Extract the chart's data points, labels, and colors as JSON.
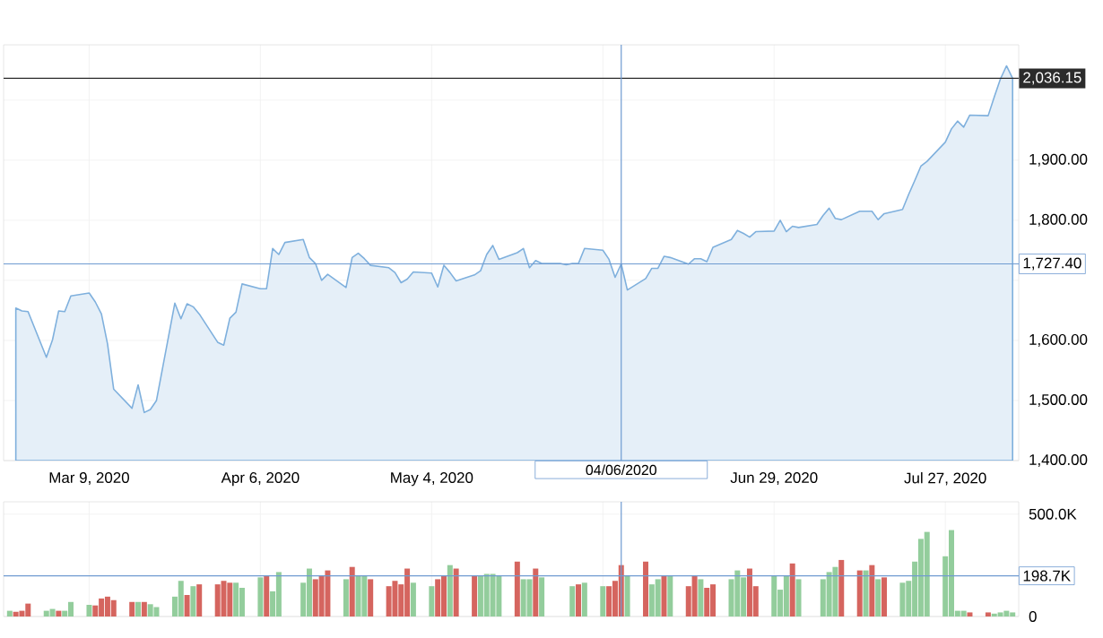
{
  "chart_data": [
    {
      "type": "area",
      "color": "#7fb0dd",
      "x": [
        "2020-02-26",
        "2020-02-27",
        "2020-02-28",
        "2020-03-02",
        "2020-03-03",
        "2020-03-04",
        "2020-03-05",
        "2020-03-06",
        "2020-03-09",
        "2020-03-10",
        "2020-03-11",
        "2020-03-12",
        "2020-03-13",
        "2020-03-16",
        "2020-03-17",
        "2020-03-18",
        "2020-03-19",
        "2020-03-20",
        "2020-03-23",
        "2020-03-24",
        "2020-03-25",
        "2020-03-26",
        "2020-03-27",
        "2020-03-30",
        "2020-03-31",
        "2020-04-01",
        "2020-04-02",
        "2020-04-03",
        "2020-04-06",
        "2020-04-07",
        "2020-04-08",
        "2020-04-09",
        "2020-04-10",
        "2020-04-13",
        "2020-04-14",
        "2020-04-15",
        "2020-04-16",
        "2020-04-17",
        "2020-04-20",
        "2020-04-21",
        "2020-04-22",
        "2020-04-23",
        "2020-04-24",
        "2020-04-27",
        "2020-04-28",
        "2020-04-29",
        "2020-04-30",
        "2020-05-01",
        "2020-05-04",
        "2020-05-05",
        "2020-05-06",
        "2020-05-07",
        "2020-05-08",
        "2020-05-11",
        "2020-05-12",
        "2020-05-13",
        "2020-05-14",
        "2020-05-15",
        "2020-05-18",
        "2020-05-19",
        "2020-05-20",
        "2020-05-21",
        "2020-05-22",
        "2020-05-25",
        "2020-05-26",
        "2020-05-27",
        "2020-05-28",
        "2020-05-29",
        "2020-06-01",
        "2020-06-02",
        "2020-06-03",
        "2020-06-04",
        "2020-06-05",
        "2020-06-08",
        "2020-06-09",
        "2020-06-10",
        "2020-06-11",
        "2020-06-12",
        "2020-06-15",
        "2020-06-16",
        "2020-06-17",
        "2020-06-18",
        "2020-06-19",
        "2020-06-22",
        "2020-06-23",
        "2020-06-24",
        "2020-06-25",
        "2020-06-26",
        "2020-06-29",
        "2020-06-30",
        "2020-07-01",
        "2020-07-02",
        "2020-07-03",
        "2020-07-06",
        "2020-07-07",
        "2020-07-08",
        "2020-07-09",
        "2020-07-10",
        "2020-07-13",
        "2020-07-14",
        "2020-07-15",
        "2020-07-16",
        "2020-07-17",
        "2020-07-20",
        "2020-07-21",
        "2020-07-22",
        "2020-07-23",
        "2020-07-24",
        "2020-07-27",
        "2020-07-28",
        "2020-07-29",
        "2020-07-30",
        "2020-07-31",
        "2020-08-03",
        "2020-08-04",
        "2020-08-05",
        "2020-08-06",
        "2020-08-07"
      ],
      "values": [
        1654,
        1649,
        1648,
        1572,
        1601,
        1649,
        1648,
        1674,
        1679,
        1664,
        1644,
        1594,
        1519,
        1487,
        1526,
        1480,
        1485,
        1500,
        1662,
        1636,
        1661,
        1656,
        1644,
        1597,
        1592,
        1637,
        1647,
        1694,
        1686,
        1686,
        1753,
        1743,
        1763,
        1768,
        1738,
        1728,
        1700,
        1710,
        1688,
        1738,
        1745,
        1736,
        1725,
        1721,
        1713,
        1696,
        1702,
        1714,
        1712,
        1689,
        1725,
        1713,
        1699,
        1709,
        1716,
        1743,
        1758,
        1735,
        1746,
        1753,
        1721,
        1733,
        1728,
        1728,
        1726,
        1728,
        1728,
        1753,
        1750,
        1735,
        1705,
        1727.4,
        1684,
        1703,
        1720,
        1720,
        1740,
        1738,
        1727,
        1736,
        1736,
        1731,
        1755,
        1768,
        1783,
        1778,
        1772,
        1781,
        1782,
        1800,
        1781,
        1790,
        1788,
        1793,
        1808,
        1820,
        1803,
        1801,
        1815,
        1815,
        1815,
        1801,
        1811,
        1818,
        1843,
        1866,
        1890,
        1898,
        1930,
        1952,
        1965,
        1955,
        1975,
        1974,
        2005,
        2035,
        2057,
        2036.15
      ],
      "xlim": [
        "2020-02-24",
        "2020-08-08"
      ],
      "xticks": [
        {
          "value": "2020-03-09",
          "label": "Mar 9, 2020"
        },
        {
          "value": "2020-04-06",
          "label": "Apr 6, 2020"
        },
        {
          "value": "2020-05-04",
          "label": "May 4, 2020"
        },
        {
          "value": "2020-06-01",
          "label": null
        },
        {
          "value": "2020-06-29",
          "label": "Jun 29, 2020"
        },
        {
          "value": "2020-07-27",
          "label": "Jul 27, 2020"
        }
      ],
      "ylim": [
        1400,
        2092
      ],
      "yticks": [
        {
          "value": 1400,
          "label": "1,400.00"
        },
        {
          "value": 1500,
          "label": "1,500.00"
        },
        {
          "value": 1600,
          "label": "1,600.00"
        },
        {
          "value": 1700,
          "label": null
        },
        {
          "value": 1800,
          "label": "1,800.00"
        },
        {
          "value": 1900,
          "label": "1,900.00"
        },
        {
          "value": 2000,
          "label": null
        }
      ],
      "grid": true,
      "ref_lines": [
        {
          "axis": "y",
          "value": 2036.15,
          "label": "2,036.15",
          "color": "#2b2b2b"
        },
        {
          "axis": "y",
          "value": 1727.4,
          "label": "1,727.40",
          "color": "#6f9bd1"
        },
        {
          "axis": "x",
          "value": "2020-06-04",
          "label": "04/06/2020",
          "color": "#6f9bd1"
        }
      ]
    },
    {
      "type": "bar",
      "x": [
        "2020-02-25",
        "2020-02-26",
        "2020-02-27",
        "2020-02-28",
        "2020-03-02",
        "2020-03-03",
        "2020-03-04",
        "2020-03-05",
        "2020-03-06",
        "2020-03-09",
        "2020-03-10",
        "2020-03-11",
        "2020-03-12",
        "2020-03-13",
        "2020-03-16",
        "2020-03-17",
        "2020-03-18",
        "2020-03-19",
        "2020-03-20",
        "2020-03-23",
        "2020-03-24",
        "2020-03-25",
        "2020-03-26",
        "2020-03-27",
        "2020-03-30",
        "2020-03-31",
        "2020-04-01",
        "2020-04-02",
        "2020-04-03",
        "2020-04-06",
        "2020-04-07",
        "2020-04-08",
        "2020-04-09",
        "2020-04-10",
        "2020-04-13",
        "2020-04-14",
        "2020-04-15",
        "2020-04-16",
        "2020-04-17",
        "2020-04-20",
        "2020-04-21",
        "2020-04-22",
        "2020-04-23",
        "2020-04-24",
        "2020-04-27",
        "2020-04-28",
        "2020-04-29",
        "2020-04-30",
        "2020-05-01",
        "2020-05-04",
        "2020-05-05",
        "2020-05-06",
        "2020-05-07",
        "2020-05-08",
        "2020-05-11",
        "2020-05-12",
        "2020-05-13",
        "2020-05-14",
        "2020-05-15",
        "2020-05-18",
        "2020-05-19",
        "2020-05-20",
        "2020-05-21",
        "2020-05-22",
        "2020-05-25",
        "2020-05-26",
        "2020-05-27",
        "2020-05-28",
        "2020-05-29",
        "2020-06-01",
        "2020-06-02",
        "2020-06-03",
        "2020-06-04",
        "2020-06-05",
        "2020-06-08",
        "2020-06-09",
        "2020-06-10",
        "2020-06-11",
        "2020-06-12",
        "2020-06-15",
        "2020-06-16",
        "2020-06-17",
        "2020-06-18",
        "2020-06-19",
        "2020-06-22",
        "2020-06-23",
        "2020-06-24",
        "2020-06-25",
        "2020-06-26",
        "2020-06-29",
        "2020-06-30",
        "2020-07-01",
        "2020-07-02",
        "2020-07-03",
        "2020-07-06",
        "2020-07-07",
        "2020-07-08",
        "2020-07-09",
        "2020-07-10",
        "2020-07-13",
        "2020-07-14",
        "2020-07-15",
        "2020-07-16",
        "2020-07-17",
        "2020-07-20",
        "2020-07-21",
        "2020-07-22",
        "2020-07-23",
        "2020-07-24",
        "2020-07-27",
        "2020-07-28",
        "2020-07-29",
        "2020-07-30",
        "2020-07-31",
        "2020-08-03",
        "2020-08-04",
        "2020-08-05",
        "2020-08-06",
        "2020-08-07"
      ],
      "values": [
        28,
        23,
        28,
        63,
        28,
        37,
        28,
        28,
        71,
        57,
        54,
        88,
        97,
        80,
        71,
        71,
        71,
        60,
        46,
        97,
        174,
        105,
        148,
        157,
        157,
        174,
        165,
        165,
        140,
        191,
        200,
        123,
        217,
        null,
        165,
        234,
        182,
        200,
        225,
        182,
        242,
        200,
        200,
        182,
        148,
        174,
        157,
        234,
        165,
        148,
        182,
        200,
        251,
        234,
        200,
        200,
        208,
        208,
        200,
        268,
        182,
        182,
        234,
        191,
        null,
        null,
        148,
        157,
        165,
        148,
        148,
        174,
        251,
        200,
        268,
        157,
        182,
        200,
        200,
        148,
        200,
        182,
        140,
        157,
        182,
        225,
        191,
        234,
        148,
        200,
        131,
        200,
        259,
        182,
        null,
        182,
        217,
        242,
        276,
        225,
        225,
        251,
        182,
        191,
        165,
        174,
        268,
        379,
        413,
        294,
        422,
        28,
        28,
        20,
        20,
        14,
        20,
        28,
        20
      ],
      "colors": [
        "#93cd9c",
        "#d5655f",
        "#d5655f",
        "#d5655f",
        "#93cd9c",
        "#93cd9c",
        "#d5655f",
        "#93cd9c",
        "#93cd9c",
        "#93cd9c",
        "#d5655f",
        "#d5655f",
        "#d5655f",
        "#d5655f",
        "#d5655f",
        "#93cd9c",
        "#d5655f",
        "#93cd9c",
        "#93cd9c",
        "#93cd9c",
        "#93cd9c",
        "#d5655f",
        "#93cd9c",
        "#d5655f",
        "#d5655f",
        "#d5655f",
        "#d5655f",
        "#93cd9c",
        "#93cd9c",
        "#93cd9c",
        "#d5655f",
        "#93cd9c",
        "#93cd9c",
        null,
        "#93cd9c",
        "#93cd9c",
        "#d5655f",
        "#d5655f",
        "#d5655f",
        "#93cd9c",
        "#d5655f",
        "#93cd9c",
        "#93cd9c",
        "#d5655f",
        "#d5655f",
        "#d5655f",
        "#d5655f",
        "#d5655f",
        "#93cd9c",
        "#93cd9c",
        "#d5655f",
        "#d5655f",
        "#93cd9c",
        "#d5655f",
        "#d5655f",
        "#93cd9c",
        "#93cd9c",
        "#93cd9c",
        "#93cd9c",
        "#d5655f",
        "#93cd9c",
        "#93cd9c",
        "#d5655f",
        "#93cd9c",
        null,
        null,
        "#93cd9c",
        "#d5655f",
        "#93cd9c",
        "#93cd9c",
        "#d5655f",
        "#d5655f",
        "#d5655f",
        "#93cd9c",
        "#d5655f",
        "#93cd9c",
        "#93cd9c",
        "#d5655f",
        "#93cd9c",
        "#d5655f",
        "#d5655f",
        "#93cd9c",
        "#d5655f",
        "#d5655f",
        "#93cd9c",
        "#93cd9c",
        "#93cd9c",
        "#d5655f",
        "#d5655f",
        "#93cd9c",
        "#93cd9c",
        "#93cd9c",
        "#d5655f",
        "#93cd9c",
        null,
        "#93cd9c",
        "#93cd9c",
        "#93cd9c",
        "#d5655f",
        "#d5655f",
        "#93cd9c",
        "#d5655f",
        "#93cd9c",
        "#d5655f",
        "#93cd9c",
        "#93cd9c",
        "#93cd9c",
        "#93cd9c",
        "#93cd9c",
        "#93cd9c",
        "#93cd9c",
        "#93cd9c",
        "#93cd9c",
        "#d5655f",
        "#d5655f",
        "#93cd9c",
        "#93cd9c",
        "#93cd9c",
        "#93cd9c"
      ],
      "xlim": [
        "2020-02-24",
        "2020-08-08"
      ],
      "xticks": [
        {
          "value": "2020-03-09",
          "label": null
        },
        {
          "value": "2020-04-06",
          "label": null
        },
        {
          "value": "2020-05-04",
          "label": null
        },
        {
          "value": "2020-06-01",
          "label": null
        },
        {
          "value": "2020-06-29",
          "label": null
        },
        {
          "value": "2020-07-27",
          "label": null
        }
      ],
      "ylim": [
        0,
        560
      ],
      "yticks": [
        0,
        {
          "value": 500,
          "label": "500.0K"
        }
      ],
      "grid": true,
      "tick_labels": "y",
      "ref_lines": [
        {
          "axis": "y",
          "value": 198.7,
          "label": "198.7K",
          "color": "#6f9bd1"
        },
        {
          "axis": "x",
          "value": "2020-06-04",
          "color": "#6f9bd1"
        }
      ]
    }
  ]
}
